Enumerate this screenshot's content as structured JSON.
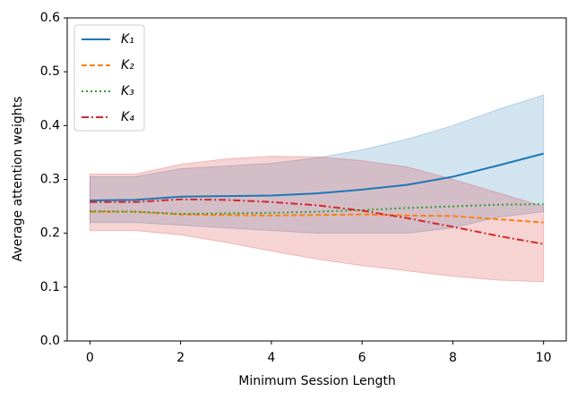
{
  "chart_data": {
    "type": "line",
    "xlabel": "Minimum Session Length",
    "ylabel": "Average attention weights",
    "x": [
      0,
      1,
      2,
      3,
      4,
      5,
      6,
      7,
      8,
      9,
      10
    ],
    "xlim": [
      -0.5,
      10.5
    ],
    "xticks": [
      0,
      2,
      4,
      6,
      8,
      10
    ],
    "ylim": [
      0,
      0.6
    ],
    "yticks": [
      {
        "value": 0,
        "label": "0.0"
      },
      0.1,
      0.2,
      0.3,
      0.4,
      0.5,
      0.6
    ],
    "legend": "upper left",
    "series": [
      {
        "name": "K₁",
        "color": "#1f77b4",
        "linestyle": "solid",
        "values": [
          0.261,
          0.262,
          0.268,
          0.269,
          0.27,
          0.274,
          0.281,
          0.29,
          0.305,
          0.326,
          0.348
        ],
        "lower": [
          0.22,
          0.22,
          0.215,
          0.21,
          0.205,
          0.2,
          0.2,
          0.2,
          0.21,
          0.23,
          0.24
        ],
        "upper": [
          0.305,
          0.305,
          0.32,
          0.325,
          0.33,
          0.34,
          0.355,
          0.375,
          0.4,
          0.43,
          0.457
        ]
      },
      {
        "name": "K₂",
        "color": "#ff7f0e",
        "linestyle": "dashed",
        "values": [
          0.24,
          0.24,
          0.235,
          0.234,
          0.233,
          0.234,
          0.235,
          0.233,
          0.232,
          0.226,
          0.22
        ]
      },
      {
        "name": "K₃",
        "color": "#2ca02c",
        "linestyle": "dotted",
        "values": [
          0.241,
          0.24,
          0.236,
          0.237,
          0.238,
          0.24,
          0.243,
          0.247,
          0.25,
          0.253,
          0.254
        ]
      },
      {
        "name": "K₄",
        "color": "#d62728",
        "linestyle": "dashdot",
        "values": [
          0.258,
          0.258,
          0.263,
          0.262,
          0.258,
          0.252,
          0.242,
          0.228,
          0.212,
          0.195,
          0.18
        ],
        "lower": [
          0.205,
          0.205,
          0.197,
          0.183,
          0.167,
          0.152,
          0.14,
          0.13,
          0.12,
          0.113,
          0.11
        ],
        "upper": [
          0.31,
          0.31,
          0.328,
          0.338,
          0.343,
          0.342,
          0.335,
          0.323,
          0.3,
          0.275,
          0.25
        ]
      }
    ]
  }
}
